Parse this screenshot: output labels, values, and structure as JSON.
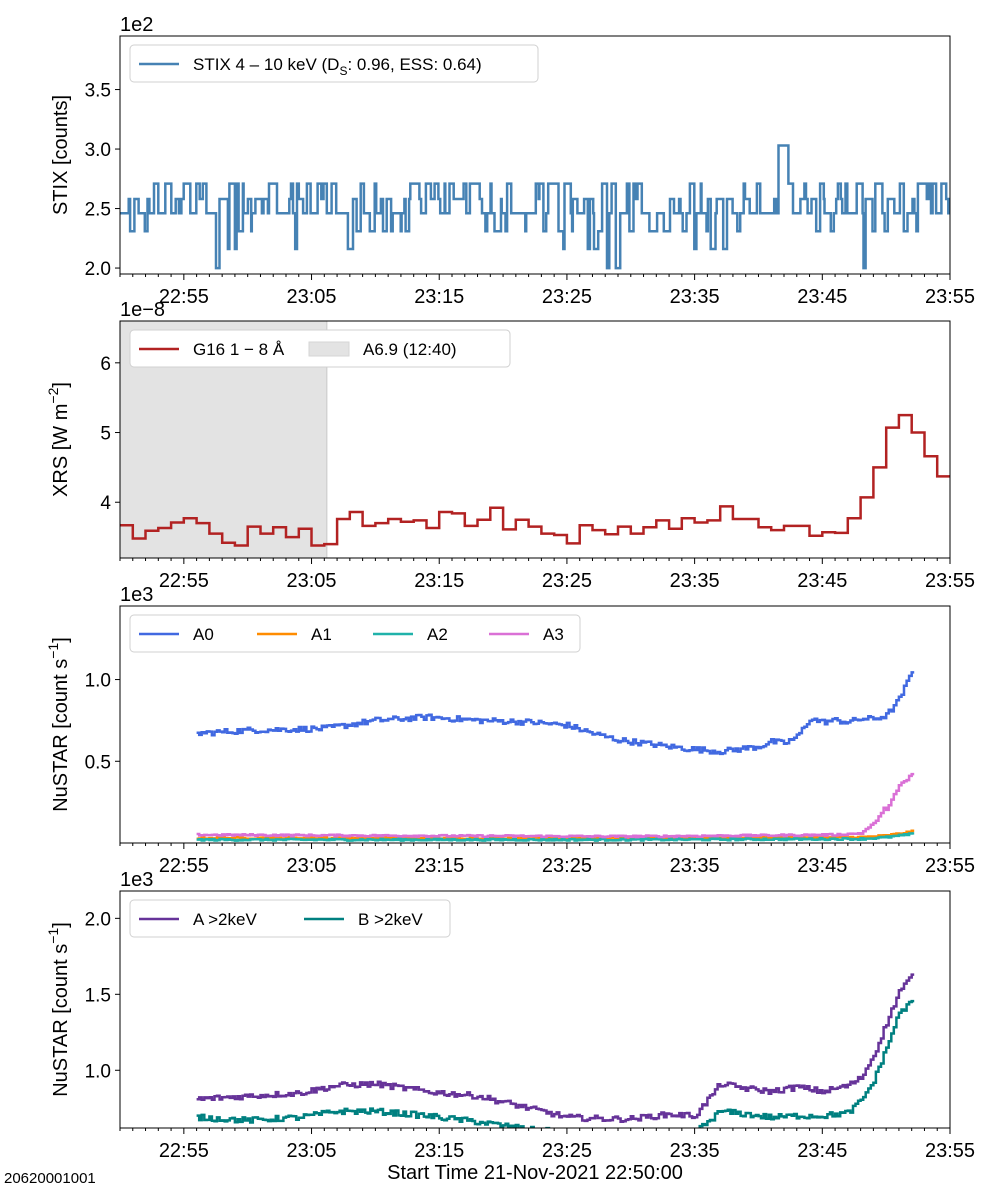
{
  "figure": {
    "footer": "20620001001",
    "xlabel": "Start Time 21-Nov-2021 22:50:00",
    "time_ticks": [
      "22:55",
      "23:05",
      "23:15",
      "23:25",
      "23:35",
      "23:45",
      "23:55"
    ]
  },
  "chart_data": [
    {
      "type": "line",
      "panel": "stix",
      "x_unit": "minutes after 22:50",
      "xlim": [
        0,
        65
      ],
      "ylabel": "STIX [counts]",
      "y_scale_label": "1e2",
      "ylim": [
        1.95,
        3.95
      ],
      "yticks": [
        2.0,
        2.5,
        3.0,
        3.5
      ],
      "ytick_labels": [
        "2.0",
        "2.5",
        "3.0",
        "3.5"
      ],
      "legend": [
        {
          "label": "STIX 4 – 10 keV (D",
          "sub": "S",
          "tail": ": 0.96, ESS: 0.64)",
          "color": "#4682b4"
        }
      ],
      "series": [
        {
          "name": "STIX 4 – 10 keV (DS: 0.96, ESS: 0.64)",
          "color": "#4682b4",
          "levels": [
            2.16,
            2.31,
            2.46,
            2.58,
            2.71
          ],
          "spike": {
            "x": 51.8,
            "y": 3.03
          },
          "baseline": 2.46
        }
      ]
    },
    {
      "type": "line",
      "panel": "xrs",
      "x_unit": "minutes after 22:50",
      "xlim": [
        0,
        65
      ],
      "ylabel": "XRS [W m",
      "ylabel_sup": "−2",
      "ylabel_tail": "]",
      "y_scale_label": "1e−8",
      "ylim": [
        3.2,
        6.6
      ],
      "yticks": [
        4,
        5,
        6
      ],
      "ytick_labels": [
        "4",
        "5",
        "6"
      ],
      "legend": [
        {
          "label": "G16 1 − 8 Å",
          "color": "#b22222"
        },
        {
          "label": "A6.9 (12:40)",
          "color": "#e3e3e3",
          "kind": "patch"
        }
      ],
      "shaded": {
        "x0": 0,
        "x1": 16.2,
        "label": "A6.9 (12:40)"
      },
      "series": [
        {
          "name": "G16 1 − 8 Å",
          "color": "#b22222",
          "x0": 0,
          "dx": 1,
          "values": [
            3.67,
            3.48,
            3.59,
            3.63,
            3.71,
            3.77,
            3.7,
            3.55,
            3.42,
            3.38,
            3.65,
            3.55,
            3.64,
            3.5,
            3.62,
            3.38,
            3.4,
            3.76,
            3.86,
            3.66,
            3.7,
            3.76,
            3.72,
            3.74,
            3.63,
            3.86,
            3.84,
            3.66,
            3.75,
            3.92,
            3.61,
            3.75,
            3.65,
            3.55,
            3.53,
            3.41,
            3.67,
            3.6,
            3.54,
            3.65,
            3.55,
            3.64,
            3.74,
            3.62,
            3.77,
            3.71,
            3.74,
            3.94,
            3.76,
            3.76,
            3.64,
            3.6,
            3.66,
            3.66,
            3.52,
            3.57,
            3.56,
            3.77,
            4.07,
            4.5,
            5.07,
            5.25,
            5.0,
            4.66,
            4.37
          ]
        }
      ]
    },
    {
      "type": "line",
      "panel": "nustar-fpm",
      "x_unit": "minutes after 22:50",
      "xlim": [
        0,
        65
      ],
      "ylabel": "NuSTAR [count s",
      "ylabel_sup": "−1",
      "ylabel_tail": "]",
      "y_scale_label": "1e3",
      "ylim": [
        0.0,
        1.45
      ],
      "yticks": [
        0.5,
        1.0
      ],
      "ytick_labels": [
        "0.5",
        "1.0"
      ],
      "legend": [
        {
          "label": "A0",
          "color": "#4169e1"
        },
        {
          "label": "A1",
          "color": "#ff8c00"
        },
        {
          "label": "A2",
          "color": "#20b2aa"
        },
        {
          "label": "A3",
          "color": "#da70d6"
        }
      ],
      "series": [
        {
          "name": "A0",
          "color": "#4169e1",
          "x": [
            6,
            10,
            16,
            20,
            24,
            28,
            32,
            35,
            37,
            39,
            41,
            44,
            47,
            49,
            50,
            51,
            52,
            53,
            54,
            55,
            56,
            57,
            58,
            59,
            60,
            61,
            62
          ],
          "y": [
            0.67,
            0.69,
            0.7,
            0.75,
            0.77,
            0.75,
            0.74,
            0.72,
            0.67,
            0.63,
            0.61,
            0.58,
            0.56,
            0.58,
            0.59,
            0.62,
            0.61,
            0.65,
            0.76,
            0.74,
            0.75,
            0.74,
            0.76,
            0.76,
            0.78,
            0.88,
            1.05
          ]
        },
        {
          "name": "A1",
          "color": "#ff8c00",
          "x": [
            6,
            20,
            40,
            58,
            60,
            62
          ],
          "y": [
            0.03,
            0.03,
            0.03,
            0.035,
            0.045,
            0.07
          ]
        },
        {
          "name": "A2",
          "color": "#20b2aa",
          "x": [
            6,
            20,
            40,
            58,
            60,
            62
          ],
          "y": [
            0.02,
            0.02,
            0.02,
            0.025,
            0.035,
            0.055
          ]
        },
        {
          "name": "A3",
          "color": "#da70d6",
          "x": [
            6,
            20,
            40,
            56,
            58,
            59,
            60,
            61,
            62
          ],
          "y": [
            0.05,
            0.045,
            0.04,
            0.05,
            0.06,
            0.12,
            0.22,
            0.34,
            0.42
          ]
        }
      ]
    },
    {
      "type": "line",
      "panel": "nustar-ab",
      "x_unit": "minutes after 22:50",
      "xlim": [
        0,
        65
      ],
      "ylabel": "NuSTAR [count s",
      "ylabel_sup": "−1",
      "ylabel_tail": "]",
      "y_scale_label": "1e3",
      "ylim": [
        0.62,
        2.18
      ],
      "yticks": [
        1.0,
        1.5,
        2.0
      ],
      "ytick_labels": [
        "1.0",
        "1.5",
        "2.0"
      ],
      "legend": [
        {
          "label": "A >2keV",
          "color": "#663399"
        },
        {
          "label": "B >2keV",
          "color": "#008080"
        }
      ],
      "series": [
        {
          "name": "A >2keV",
          "color": "#663399",
          "x": [
            6,
            10,
            14,
            17,
            20,
            24,
            28,
            32,
            35,
            38,
            40,
            41,
            43,
            45,
            47,
            49,
            51,
            53,
            55,
            57,
            58,
            59,
            60,
            61,
            62
          ],
          "y": [
            0.81,
            0.83,
            0.85,
            0.9,
            0.91,
            0.86,
            0.83,
            0.75,
            0.69,
            0.68,
            0.68,
            0.69,
            0.71,
            0.7,
            0.91,
            0.88,
            0.86,
            0.89,
            0.86,
            0.9,
            0.95,
            1.1,
            1.31,
            1.52,
            1.62
          ]
        },
        {
          "name": "B >2keV",
          "color": "#008080",
          "x": [
            6,
            10,
            14,
            17,
            20,
            24,
            28,
            32,
            35,
            38,
            40,
            41,
            43,
            45,
            47,
            49,
            51,
            53,
            55,
            57,
            58,
            59,
            60,
            61,
            62
          ],
          "y": [
            0.69,
            0.67,
            0.69,
            0.73,
            0.73,
            0.7,
            0.66,
            0.61,
            0.59,
            0.58,
            0.58,
            0.58,
            0.59,
            0.59,
            0.73,
            0.71,
            0.69,
            0.7,
            0.7,
            0.72,
            0.8,
            0.93,
            1.15,
            1.38,
            1.45
          ]
        }
      ]
    }
  ]
}
